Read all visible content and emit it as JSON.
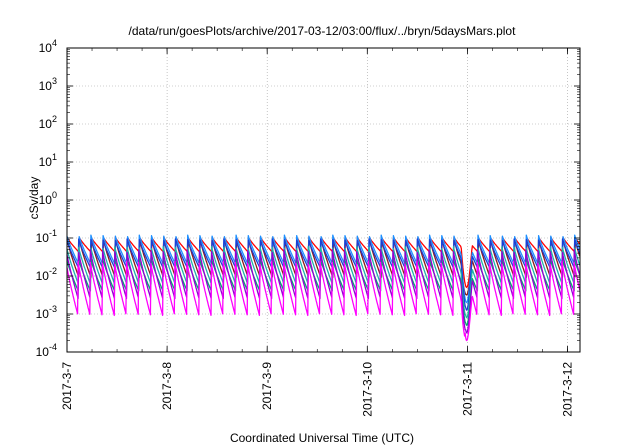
{
  "chart_data": {
    "type": "line",
    "title": "/data/run/goesPlots/archive/2017-03-12/03:00/flux/../bryn/5daysMars.plot",
    "xlabel": "Coordinated Universal Time (UTC)",
    "ylabel": "cSv/day",
    "y_scale": "log",
    "ylim": [
      0.0001,
      10000
    ],
    "y_ticks": [
      {
        "value": 0.0001,
        "base": "10",
        "exp": "-4"
      },
      {
        "value": 0.001,
        "base": "10",
        "exp": "-3"
      },
      {
        "value": 0.01,
        "base": "10",
        "exp": "-2"
      },
      {
        "value": 0.1,
        "base": "10",
        "exp": "-1"
      },
      {
        "value": 1,
        "base": "10",
        "exp": "0"
      },
      {
        "value": 10,
        "base": "10",
        "exp": "1"
      },
      {
        "value": 100,
        "base": "10",
        "exp": "2"
      },
      {
        "value": 1000,
        "base": "10",
        "exp": "3"
      },
      {
        "value": 10000,
        "base": "10",
        "exp": "4"
      }
    ],
    "xlim": [
      "2017-03-07T00:00",
      "2017-03-12T03:00"
    ],
    "x_ticks": [
      {
        "value": "2017-03-07T00:00",
        "label": "2017-3-7"
      },
      {
        "value": "2017-03-08T00:00",
        "label": "2017-3-8"
      },
      {
        "value": "2017-03-09T00:00",
        "label": "2017-3-9"
      },
      {
        "value": "2017-03-10T00:00",
        "label": "2017-3-10"
      },
      {
        "value": "2017-03-11T00:00",
        "label": "2017-3-11"
      },
      {
        "value": "2017-03-12T00:00",
        "label": "2017-3-12"
      }
    ],
    "grid": true,
    "legend": "none",
    "dose_pattern": {
      "cycle_hours": 2.9,
      "dip_start": "2017-03-10T22:30",
      "dip_end": "2017-03-11T01:10",
      "dip_value_min": 0.0002,
      "dip_value_max": 0.005
    },
    "series": [
      {
        "color": "#ff0000",
        "peak": 0.105,
        "trough": 0.042
      },
      {
        "color": "#8b1a1a",
        "peak": 0.1,
        "trough": 0.009
      },
      {
        "color": "#1e90ff",
        "peak": 0.12,
        "trough": 0.02
      },
      {
        "color": "#1a3fd6",
        "peak": 0.095,
        "trough": 0.016
      },
      {
        "color": "#20b2aa",
        "peak": 0.06,
        "trough": 0.006
      },
      {
        "color": "#00a870",
        "peak": 0.03,
        "trough": 0.004
      },
      {
        "color": "#9400d3",
        "peak": 0.05,
        "trough": 0.0025
      },
      {
        "color": "#ff00ff",
        "peak": 0.025,
        "trough": 0.0009
      }
    ]
  }
}
